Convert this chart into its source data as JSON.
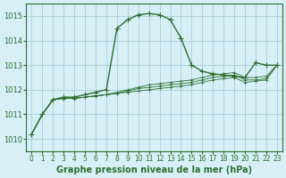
{
  "title": "Graphe pression niveau de la mer (hPa)",
  "background_color": "#d8eff8",
  "grid_color": "#a0c8d8",
  "line_color": "#2d6e2d",
  "xlim": [
    -0.5,
    23.5
  ],
  "ylim": [
    1009.5,
    1015.5
  ],
  "xticks": [
    0,
    1,
    2,
    3,
    4,
    5,
    6,
    7,
    8,
    9,
    10,
    11,
    12,
    13,
    14,
    15,
    16,
    17,
    18,
    19,
    20,
    21,
    22,
    23
  ],
  "yticks": [
    1010,
    1011,
    1012,
    1013,
    1014,
    1015
  ],
  "series": [
    [
      1010.2,
      1011.0,
      1011.6,
      1011.7,
      1011.7,
      1011.8,
      1011.9,
      1012.0,
      1014.5,
      1014.85,
      1015.05,
      1015.1,
      1015.05,
      1014.85,
      1014.1,
      1013.0,
      1012.75,
      1012.65,
      1012.6,
      1012.55,
      1012.5,
      1013.1,
      1013.0,
      1013.0
    ],
    [
      1010.2,
      1011.0,
      1011.6,
      1011.65,
      1011.65,
      1011.7,
      1011.75,
      1011.8,
      1011.9,
      1012.0,
      1012.1,
      1012.2,
      1012.25,
      1012.3,
      1012.35,
      1012.4,
      1012.5,
      1012.6,
      1012.65,
      1012.7,
      1012.5,
      1012.5,
      1012.55,
      1013.0
    ],
    [
      1010.2,
      1011.0,
      1011.6,
      1011.65,
      1011.65,
      1011.7,
      1011.75,
      1011.8,
      1011.85,
      1011.95,
      1012.05,
      1012.1,
      1012.15,
      1012.2,
      1012.25,
      1012.3,
      1012.4,
      1012.5,
      1012.55,
      1012.6,
      1012.4,
      1012.4,
      1012.45,
      1013.0
    ],
    [
      1010.2,
      1011.0,
      1011.6,
      1011.65,
      1011.65,
      1011.7,
      1011.75,
      1011.8,
      1011.85,
      1011.9,
      1011.95,
      1012.0,
      1012.05,
      1012.1,
      1012.15,
      1012.2,
      1012.3,
      1012.4,
      1012.45,
      1012.5,
      1012.3,
      1012.35,
      1012.4,
      1013.0
    ]
  ]
}
